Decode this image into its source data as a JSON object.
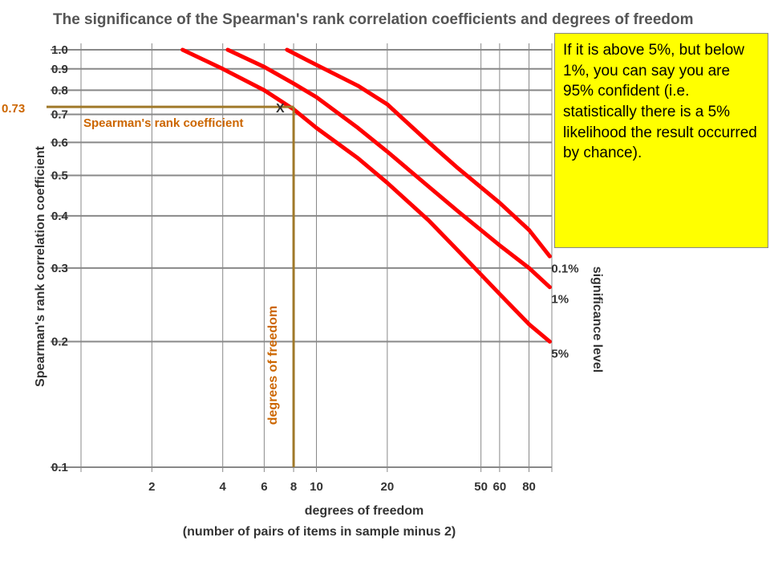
{
  "chart_data": {
    "type": "line",
    "title": "The significance of the Spearman's rank correlation coefficients and degrees of freedom",
    "xlabel": "degrees of freedom",
    "xlabel_sub": "(number of pairs of items in sample minus 2)",
    "ylabel": "Spearman's rank correlation coefficient",
    "xscale": "log",
    "yscale": "log",
    "xlim": [
      1,
      100
    ],
    "ylim": [
      0.1,
      1.0
    ],
    "x_ticks": [
      2,
      4,
      6,
      8,
      10,
      20,
      50,
      60,
      80
    ],
    "x_tick_labels": [
      "2",
      "4",
      "6",
      "8",
      "10",
      "20",
      "50",
      "60",
      "80"
    ],
    "y_ticks": [
      0.1,
      0.2,
      0.3,
      0.4,
      0.5,
      0.6,
      0.7,
      0.8,
      0.9,
      1.0
    ],
    "y_tick_labels": [
      "0.1",
      "0.2",
      "0.3",
      "0.4",
      "0.5",
      "0.6",
      "0.7",
      "0.8",
      "0.9",
      "1.0"
    ],
    "grid": true,
    "legend_title": "significance level",
    "series": [
      {
        "name": "0.1%",
        "x": [
          7.5,
          10,
          15,
          20,
          30,
          40,
          60,
          80,
          98
        ],
        "y": [
          1.0,
          0.92,
          0.82,
          0.74,
          0.6,
          0.52,
          0.43,
          0.37,
          0.32
        ]
      },
      {
        "name": "1%",
        "x": [
          4.2,
          6,
          8,
          10,
          15,
          20,
          30,
          40,
          60,
          80,
          98
        ],
        "y": [
          1.0,
          0.91,
          0.83,
          0.77,
          0.65,
          0.57,
          0.47,
          0.41,
          0.34,
          0.3,
          0.27
        ]
      },
      {
        "name": "5%",
        "x": [
          2.7,
          4,
          6,
          8,
          10,
          15,
          20,
          30,
          40,
          60,
          80,
          98
        ],
        "y": [
          1.0,
          0.9,
          0.8,
          0.72,
          0.65,
          0.55,
          0.48,
          0.39,
          0.33,
          0.26,
          0.22,
          0.2
        ]
      }
    ],
    "annotations": {
      "marker_label": "X",
      "marker_x": 8,
      "marker_y": 0.73,
      "y_marker_label": "0.73",
      "horizontal_line_label": "Spearman's rank coefficient",
      "vertical_line_label": "degrees of freedom"
    }
  },
  "note": {
    "text": "If it is above 5%, but below 1%, you can say you are 95% confident (i.e. statistically there is a 5% likelihood the result occurred by chance)."
  },
  "colors": {
    "curve": "#ff0000",
    "grid": "#888888",
    "marker_lines": "#a0792a",
    "marker_text": "#cc6600",
    "note_background": "#ffff00"
  }
}
